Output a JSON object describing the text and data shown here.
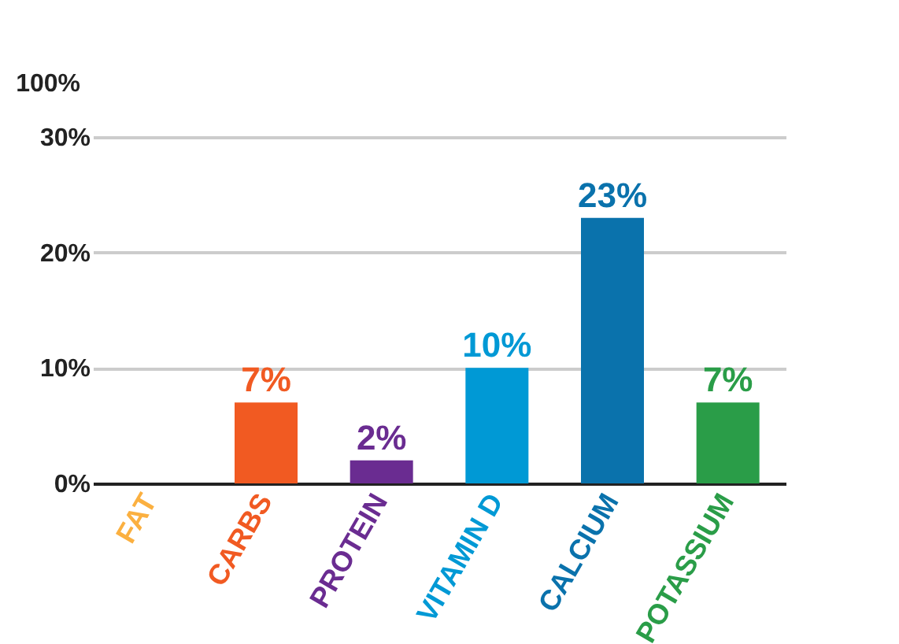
{
  "chart_data": {
    "type": "bar",
    "categories": [
      "FAT",
      "CARBS",
      "PROTEIN",
      "VITAMIN D",
      "CALCIUM",
      "POTASSIUM"
    ],
    "values": [
      null,
      7,
      2,
      10,
      23,
      7
    ],
    "value_labels": [
      null,
      "7%",
      "2%",
      "10%",
      "23%",
      "7%"
    ],
    "colors": [
      "#fbb040",
      "#f15a22",
      "#6a2c91",
      "#0099d5",
      "#0a72ac",
      "#2a9d48"
    ],
    "ylim": [
      0,
      30
    ],
    "yticks": [
      {
        "value": 0,
        "label": "0%"
      },
      {
        "value": 10,
        "label": "10%"
      },
      {
        "value": 20,
        "label": "20%"
      },
      {
        "value": 30,
        "label": "30%"
      }
    ],
    "annotations": [
      "100%"
    ],
    "grid": "y"
  }
}
